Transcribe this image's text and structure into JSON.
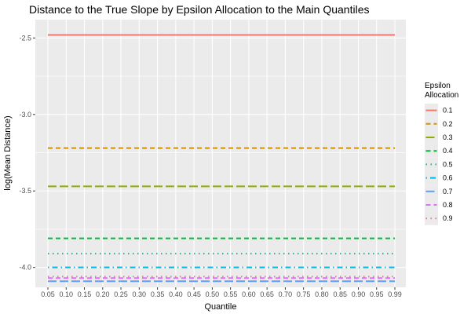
{
  "chart_data": {
    "type": "line",
    "title": "Distance to the True Slope by Epsilon Allocation to the Main Quantiles",
    "xlabel": "Quantile",
    "ylabel": "log(Mean Distance)",
    "x_ticks": [
      "0.05",
      "0.10",
      "0.15",
      "0.20",
      "0.25",
      "0.30",
      "0.35",
      "0.40",
      "0.45",
      "0.50",
      "0.55",
      "0.60",
      "0.65",
      "0.70",
      "0.75",
      "0.80",
      "0.85",
      "0.90",
      "0.95",
      "0.99"
    ],
    "x": [
      0.05,
      0.1,
      0.15,
      0.2,
      0.25,
      0.3,
      0.35,
      0.4,
      0.45,
      0.5,
      0.55,
      0.6,
      0.65,
      0.7,
      0.75,
      0.8,
      0.85,
      0.9,
      0.95,
      0.99
    ],
    "y_ticks": [
      -2.5,
      -3.0,
      -3.5,
      -4.0
    ],
    "y_tick_labels": [
      "-2.5",
      "-3.0",
      "-3.5",
      "-4.0"
    ],
    "ylim": [
      -4.13,
      -2.38
    ],
    "grid": true,
    "legend": {
      "title": "Epsilon Allocation",
      "title_lines": [
        "Epsilon",
        "Allocation"
      ],
      "position": "right"
    },
    "series": [
      {
        "name": "0.1",
        "value": -2.48,
        "color": "#F8766D",
        "dash": "solid"
      },
      {
        "name": "0.2",
        "value": -3.22,
        "color": "#D39200",
        "dash": "dashed"
      },
      {
        "name": "0.3",
        "value": -3.47,
        "color": "#93AA00",
        "dash": "longdash"
      },
      {
        "name": "0.4",
        "value": -3.81,
        "color": "#00BA38",
        "dash": "dashed"
      },
      {
        "name": "0.5",
        "value": -3.91,
        "color": "#00C19F",
        "dash": "dotted"
      },
      {
        "name": "0.6",
        "value": -4.0,
        "color": "#00B9E3",
        "dash": "dotdash"
      },
      {
        "name": "0.7",
        "value": -4.09,
        "color": "#619CFF",
        "dash": "longdash"
      },
      {
        "name": "0.8",
        "value": -4.07,
        "color": "#DB72FB",
        "dash": "dashed"
      },
      {
        "name": "0.9",
        "value": -4.06,
        "color": "#FF61C3",
        "dash": "dotted"
      }
    ]
  }
}
